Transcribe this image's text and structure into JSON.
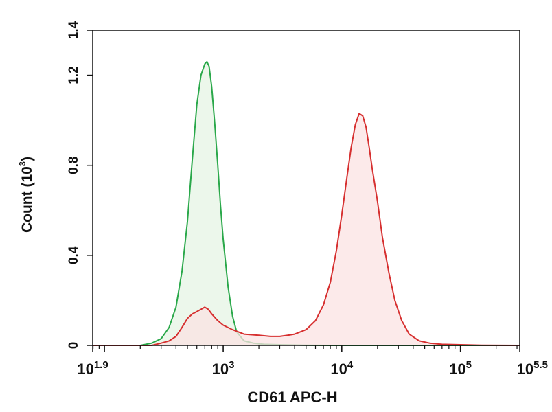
{
  "chart_data": {
    "type": "area",
    "xlabel": "CD61 APC-H",
    "ylabel": "Count (10",
    "ylabel_sup": "3",
    "ylabel_close": ")",
    "x_scale": "log",
    "xlim": [
      79.43,
      316228
    ],
    "ylim": [
      0,
      1.4
    ],
    "grid": false,
    "x_ticks": [
      {
        "value": 79.43,
        "base": "10",
        "exp": "1.9"
      },
      {
        "value": 1000,
        "base": "10",
        "exp": "3"
      },
      {
        "value": 10000,
        "base": "10",
        "exp": "4"
      },
      {
        "value": 100000,
        "base": "10",
        "exp": "5"
      },
      {
        "value": 316228,
        "base": "10",
        "exp": "5.5"
      }
    ],
    "y_ticks": [
      {
        "value": 0,
        "label": "0"
      },
      {
        "value": 0.4,
        "label": "0.4"
      },
      {
        "value": 0.8,
        "label": "0.8"
      },
      {
        "value": 1.2,
        "label": "1.2"
      },
      {
        "value": 1.4,
        "label": "1.4"
      }
    ],
    "series": [
      {
        "color": "#2aa84a",
        "fill": "#e6f4e4",
        "x": [
          79.43,
          200,
          250,
          300,
          350,
          400,
          450,
          500,
          550,
          600,
          650,
          700,
          730,
          760,
          800,
          850,
          900,
          950,
          1000,
          1100,
          1200,
          1300,
          1500,
          1800,
          2200,
          3000,
          5000,
          8000,
          316228
        ],
        "y": [
          0,
          0,
          0.01,
          0.03,
          0.08,
          0.17,
          0.33,
          0.55,
          0.83,
          1.07,
          1.2,
          1.25,
          1.26,
          1.24,
          1.15,
          0.98,
          0.8,
          0.62,
          0.47,
          0.26,
          0.13,
          0.06,
          0.02,
          0.01,
          0.005,
          0.003,
          0.001,
          0,
          0
        ]
      },
      {
        "color": "#d62f2f",
        "fill": "#fbe3e3",
        "x": [
          79.43,
          250,
          300,
          350,
          400,
          450,
          500,
          550,
          600,
          650,
          700,
          750,
          800,
          900,
          1000,
          1200,
          1500,
          2000,
          2500,
          3000,
          3500,
          4000,
          5000,
          6000,
          7000,
          8000,
          9000,
          10000,
          11000,
          12000,
          13000,
          14000,
          15000,
          16000,
          17000,
          18000,
          20000,
          22000,
          25000,
          28000,
          32000,
          37000,
          45000,
          55000,
          70000,
          100000,
          150000,
          316228
        ],
        "y": [
          0,
          0,
          0.01,
          0.02,
          0.04,
          0.08,
          0.12,
          0.14,
          0.15,
          0.16,
          0.17,
          0.16,
          0.14,
          0.11,
          0.09,
          0.07,
          0.05,
          0.045,
          0.04,
          0.04,
          0.045,
          0.05,
          0.07,
          0.11,
          0.18,
          0.28,
          0.42,
          0.58,
          0.74,
          0.88,
          0.98,
          1.03,
          1.02,
          0.97,
          0.88,
          0.79,
          0.64,
          0.48,
          0.32,
          0.2,
          0.11,
          0.05,
          0.02,
          0.01,
          0.005,
          0.003,
          0.001,
          0
        ]
      }
    ]
  }
}
